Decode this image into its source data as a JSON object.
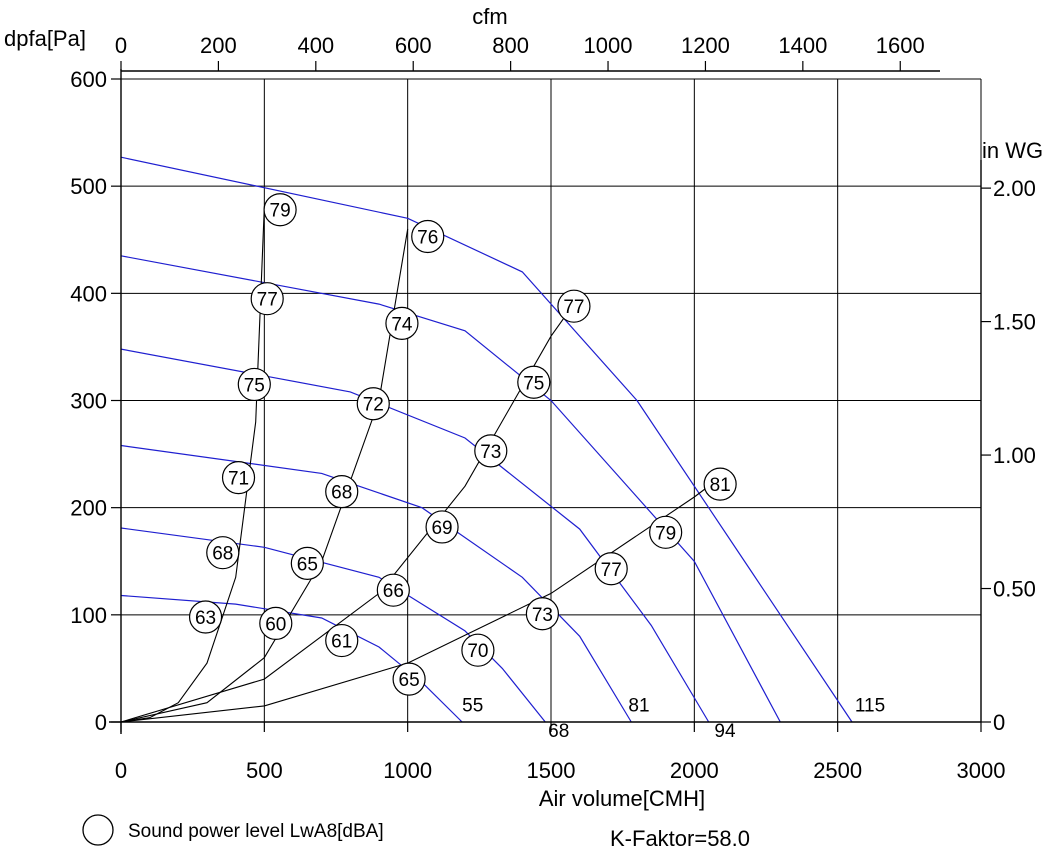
{
  "chart_data": {
    "type": "line",
    "title": "",
    "xlabel": "Air volume[CMH]",
    "ylabel": "dpfa[Pa]",
    "top_axis_label": "cfm",
    "right_axis_label": "in WG",
    "xlim": [
      0,
      3000
    ],
    "ylim": [
      0,
      600
    ],
    "x_ticks": [
      0,
      500,
      1000,
      1500,
      2000,
      2500,
      3000
    ],
    "y_ticks": [
      0,
      100,
      200,
      300,
      400,
      500,
      600
    ],
    "top_ticks": [
      0,
      200,
      400,
      600,
      800,
      1000,
      1200,
      1400,
      1600
    ],
    "right_ticks": [
      "0",
      "0.50",
      "1.00",
      "1.50",
      "2.00"
    ],
    "grid": true,
    "fan_curves": [
      {
        "points": [
          [
            0,
            118
          ],
          [
            400,
            110
          ],
          [
            700,
            97
          ],
          [
            900,
            70
          ],
          [
            1050,
            37
          ],
          [
            1190,
            0
          ]
        ]
      },
      {
        "points": [
          [
            0,
            181
          ],
          [
            500,
            163
          ],
          [
            900,
            135
          ],
          [
            1200,
            85
          ],
          [
            1330,
            50
          ],
          [
            1480,
            0
          ]
        ]
      },
      {
        "points": [
          [
            0,
            258
          ],
          [
            700,
            232
          ],
          [
            1050,
            200
          ],
          [
            1400,
            135
          ],
          [
            1600,
            80
          ],
          [
            1780,
            0
          ]
        ]
      },
      {
        "points": [
          [
            0,
            348
          ],
          [
            800,
            308
          ],
          [
            1200,
            265
          ],
          [
            1600,
            180
          ],
          [
            1850,
            90
          ],
          [
            2050,
            0
          ]
        ]
      },
      {
        "points": [
          [
            0,
            435
          ],
          [
            900,
            390
          ],
          [
            1200,
            365
          ],
          [
            1500,
            300
          ],
          [
            2000,
            150
          ],
          [
            2300,
            0
          ]
        ]
      },
      {
        "points": [
          [
            0,
            527
          ],
          [
            1000,
            470
          ],
          [
            1400,
            420
          ],
          [
            1800,
            300
          ],
          [
            2200,
            140
          ],
          [
            2550,
            0
          ]
        ]
      }
    ],
    "system_curves": [
      {
        "label": "55",
        "label_pos": [
          1190,
          10
        ],
        "points": [
          [
            0,
            0
          ],
          [
            100,
            4
          ],
          [
            200,
            18
          ],
          [
            300,
            55
          ],
          [
            400,
            135
          ],
          [
            470,
            280
          ],
          [
            500,
            480
          ]
        ]
      },
      {
        "label": "68",
        "label_pos": [
          1490,
          -14
        ],
        "points": [
          [
            0,
            0
          ],
          [
            300,
            18
          ],
          [
            500,
            60
          ],
          [
            700,
            150
          ],
          [
            900,
            300
          ],
          [
            1000,
            460
          ]
        ]
      },
      {
        "label": "81",
        "label_pos": [
          1770,
          10
        ],
        "points": [
          [
            0,
            0
          ],
          [
            500,
            40
          ],
          [
            900,
            120
          ],
          [
            1200,
            220
          ],
          [
            1500,
            360
          ],
          [
            1580,
            390
          ]
        ]
      },
      {
        "label": "94",
        "label_pos": [
          2070,
          -14
        ],
        "points": [
          [
            0,
            0
          ],
          [
            500,
            15
          ],
          [
            1000,
            55
          ],
          [
            1500,
            120
          ],
          [
            2000,
            210
          ],
          [
            2100,
            230
          ]
        ]
      },
      {
        "label": "115",
        "label_pos": [
          2560,
          10
        ],
        "points": []
      }
    ],
    "sound_levels": [
      {
        "value": "79",
        "x": 555,
        "y": 478
      },
      {
        "value": "76",
        "x": 1070,
        "y": 453
      },
      {
        "value": "77",
        "x": 1580,
        "y": 388
      },
      {
        "value": "77",
        "x": 510,
        "y": 395
      },
      {
        "value": "74",
        "x": 980,
        "y": 372
      },
      {
        "value": "75",
        "x": 1440,
        "y": 317
      },
      {
        "value": "75",
        "x": 465,
        "y": 315
      },
      {
        "value": "72",
        "x": 880,
        "y": 297
      },
      {
        "value": "73",
        "x": 1290,
        "y": 253
      },
      {
        "value": "81",
        "x": 2090,
        "y": 222
      },
      {
        "value": "71",
        "x": 410,
        "y": 228
      },
      {
        "value": "68",
        "x": 770,
        "y": 215
      },
      {
        "value": "69",
        "x": 1120,
        "y": 182
      },
      {
        "value": "79",
        "x": 1900,
        "y": 177
      },
      {
        "value": "68",
        "x": 355,
        "y": 158
      },
      {
        "value": "65",
        "x": 650,
        "y": 148
      },
      {
        "value": "66",
        "x": 950,
        "y": 123
      },
      {
        "value": "77",
        "x": 1710,
        "y": 143
      },
      {
        "value": "63",
        "x": 295,
        "y": 98
      },
      {
        "value": "60",
        "x": 540,
        "y": 92
      },
      {
        "value": "61",
        "x": 770,
        "y": 76
      },
      {
        "value": "73",
        "x": 1470,
        "y": 101
      },
      {
        "value": "70",
        "x": 1245,
        "y": 67
      },
      {
        "value": "65",
        "x": 1005,
        "y": 40
      }
    ],
    "legend_text": "Sound power level LwA8[dBA]",
    "k_factor_text": "K-Faktor=58.0",
    "colors": {
      "fan_curve": "#1f1fd0",
      "system_curve": "#000000",
      "grid": "#000000"
    }
  }
}
